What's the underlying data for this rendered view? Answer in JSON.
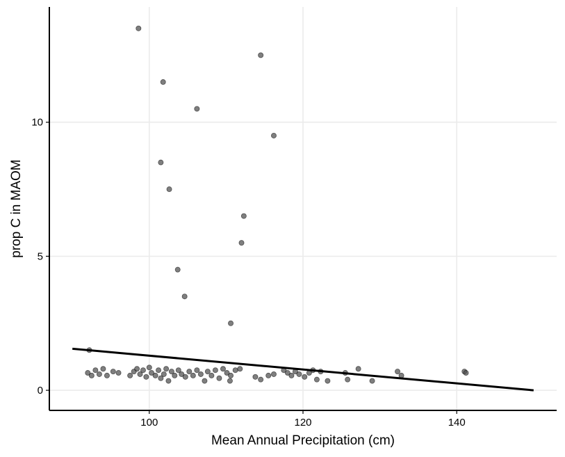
{
  "chart_data": {
    "type": "scatter",
    "title": "",
    "xlabel": "Mean Annual Precipitation (cm)",
    "ylabel": "prop C in MAOM",
    "xlim": [
      87,
      153
    ],
    "ylim": [
      -0.75,
      14.3
    ],
    "x_ticks": [
      100,
      120,
      140
    ],
    "y_ticks": [
      0,
      5,
      10
    ],
    "grid": true,
    "legend": "none",
    "colors": {
      "point_fill": "#4d4d4d",
      "point_stroke": "#000000",
      "line": "#000000",
      "grid": "#ebebeb",
      "axis": "#000000"
    },
    "points": [
      {
        "x": 98.6,
        "y": 13.5
      },
      {
        "x": 114.5,
        "y": 12.5
      },
      {
        "x": 101.8,
        "y": 11.5
      },
      {
        "x": 106.2,
        "y": 10.5
      },
      {
        "x": 116.2,
        "y": 9.5
      },
      {
        "x": 101.5,
        "y": 8.5
      },
      {
        "x": 102.6,
        "y": 7.5
      },
      {
        "x": 112.3,
        "y": 6.5
      },
      {
        "x": 112.0,
        "y": 5.5
      },
      {
        "x": 103.7,
        "y": 4.5
      },
      {
        "x": 104.6,
        "y": 3.5
      },
      {
        "x": 110.6,
        "y": 2.5
      },
      {
        "x": 92.2,
        "y": 1.5
      },
      {
        "x": 92.0,
        "y": 0.65
      },
      {
        "x": 92.5,
        "y": 0.55
      },
      {
        "x": 93.0,
        "y": 0.75
      },
      {
        "x": 93.5,
        "y": 0.6
      },
      {
        "x": 94.0,
        "y": 0.8
      },
      {
        "x": 94.5,
        "y": 0.55
      },
      {
        "x": 95.3,
        "y": 0.7
      },
      {
        "x": 96.0,
        "y": 0.65
      },
      {
        "x": 97.5,
        "y": 0.55
      },
      {
        "x": 98.0,
        "y": 0.7
      },
      {
        "x": 98.4,
        "y": 0.8
      },
      {
        "x": 98.8,
        "y": 0.6
      },
      {
        "x": 99.2,
        "y": 0.75
      },
      {
        "x": 99.6,
        "y": 0.5
      },
      {
        "x": 100.0,
        "y": 0.85
      },
      {
        "x": 100.3,
        "y": 0.65
      },
      {
        "x": 100.8,
        "y": 0.55
      },
      {
        "x": 101.2,
        "y": 0.75
      },
      {
        "x": 101.5,
        "y": 0.45
      },
      {
        "x": 101.9,
        "y": 0.6
      },
      {
        "x": 102.2,
        "y": 0.8
      },
      {
        "x": 102.5,
        "y": 0.35
      },
      {
        "x": 102.9,
        "y": 0.7
      },
      {
        "x": 103.3,
        "y": 0.55
      },
      {
        "x": 103.8,
        "y": 0.75
      },
      {
        "x": 104.2,
        "y": 0.6
      },
      {
        "x": 104.7,
        "y": 0.5
      },
      {
        "x": 105.2,
        "y": 0.7
      },
      {
        "x": 105.7,
        "y": 0.55
      },
      {
        "x": 106.2,
        "y": 0.75
      },
      {
        "x": 106.7,
        "y": 0.6
      },
      {
        "x": 107.2,
        "y": 0.35
      },
      {
        "x": 107.6,
        "y": 0.7
      },
      {
        "x": 108.1,
        "y": 0.55
      },
      {
        "x": 108.6,
        "y": 0.75
      },
      {
        "x": 109.1,
        "y": 0.45
      },
      {
        "x": 109.6,
        "y": 0.8
      },
      {
        "x": 110.1,
        "y": 0.65
      },
      {
        "x": 110.6,
        "y": 0.55
      },
      {
        "x": 111.2,
        "y": 0.75
      },
      {
        "x": 111.8,
        "y": 0.8
      },
      {
        "x": 110.5,
        "y": 0.35
      },
      {
        "x": 113.8,
        "y": 0.5
      },
      {
        "x": 114.5,
        "y": 0.4
      },
      {
        "x": 115.5,
        "y": 0.55
      },
      {
        "x": 116.2,
        "y": 0.6
      },
      {
        "x": 117.5,
        "y": 0.75
      },
      {
        "x": 118.0,
        "y": 0.65
      },
      {
        "x": 118.5,
        "y": 0.55
      },
      {
        "x": 119.0,
        "y": 0.7
      },
      {
        "x": 119.5,
        "y": 0.6
      },
      {
        "x": 120.2,
        "y": 0.5
      },
      {
        "x": 120.8,
        "y": 0.65
      },
      {
        "x": 121.3,
        "y": 0.75
      },
      {
        "x": 121.8,
        "y": 0.4
      },
      {
        "x": 122.3,
        "y": 0.7
      },
      {
        "x": 123.2,
        "y": 0.35
      },
      {
        "x": 125.5,
        "y": 0.65
      },
      {
        "x": 125.8,
        "y": 0.4
      },
      {
        "x": 127.2,
        "y": 0.8
      },
      {
        "x": 129.0,
        "y": 0.35
      },
      {
        "x": 132.3,
        "y": 0.7
      },
      {
        "x": 132.8,
        "y": 0.55
      },
      {
        "x": 141.0,
        "y": 0.7
      },
      {
        "x": 141.2,
        "y": 0.65
      }
    ],
    "trend_line": {
      "x": [
        90,
        150
      ],
      "y": [
        1.55,
        0.0
      ]
    }
  }
}
